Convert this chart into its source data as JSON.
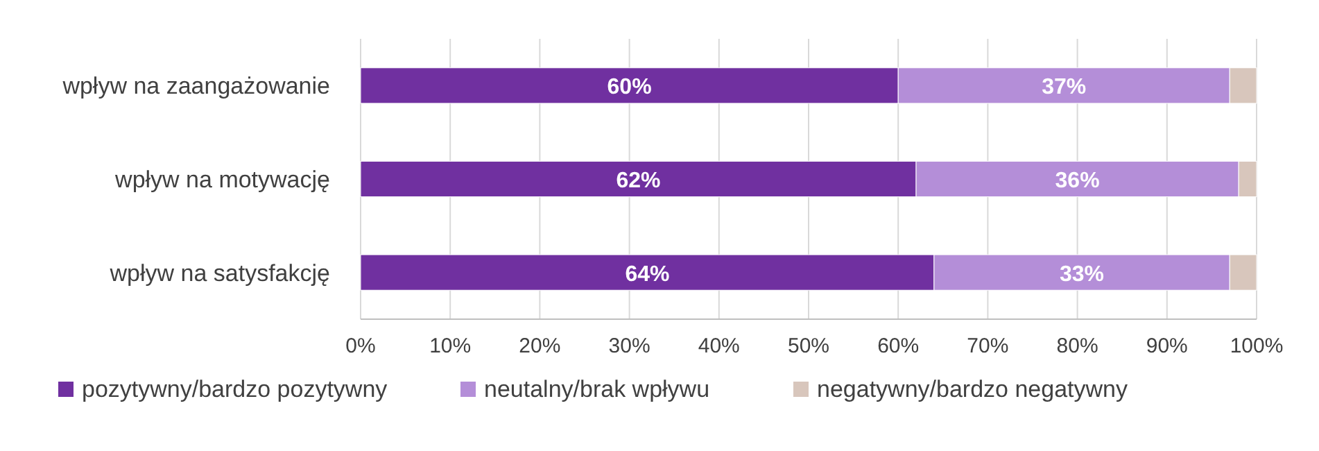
{
  "chart_data": {
    "type": "bar",
    "orientation": "horizontal",
    "stacked": true,
    "categories": [
      "wpływ na zaangażowanie",
      "wpływ na motywację",
      "wpływ na satysfakcję"
    ],
    "series": [
      {
        "name": "pozytywny/bardzo pozytywny",
        "color": "#7030a0",
        "values": [
          60,
          62,
          64
        ],
        "value_labels": [
          "60%",
          "62%",
          "64%"
        ]
      },
      {
        "name": "neutalny/brak wpływu",
        "color": "#b48ed8",
        "values": [
          37,
          36,
          33
        ],
        "value_labels": [
          "37%",
          "36%",
          "33%"
        ]
      },
      {
        "name": "negatywny/bardzo negatywny",
        "color": "#d8c6bc",
        "values": [
          3,
          2,
          3
        ],
        "value_labels": [
          null,
          null,
          null
        ]
      }
    ],
    "xlim": [
      0,
      100
    ],
    "xticks": [
      {
        "value": 0,
        "label": "0%"
      },
      {
        "value": 10,
        "label": "10%"
      },
      {
        "value": 20,
        "label": "20%"
      },
      {
        "value": 30,
        "label": "30%"
      },
      {
        "value": 40,
        "label": "40%"
      },
      {
        "value": 50,
        "label": "50%"
      },
      {
        "value": 60,
        "label": "60%"
      },
      {
        "value": 70,
        "label": "70%"
      },
      {
        "value": 80,
        "label": "80%"
      },
      {
        "value": 90,
        "label": "90%"
      },
      {
        "value": 100,
        "label": "100%"
      }
    ],
    "grid": "x",
    "legend": "bottom"
  }
}
